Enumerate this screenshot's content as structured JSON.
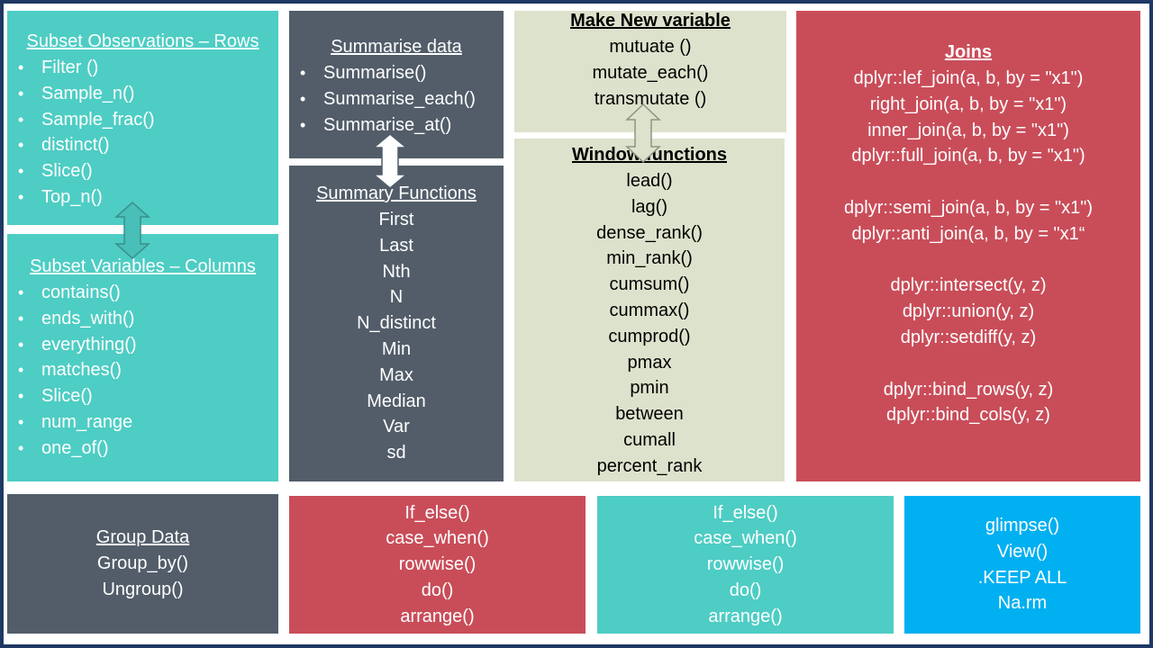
{
  "subset_rows": {
    "title": "Subset Observations – Rows",
    "items": [
      "Filter ()",
      "Sample_n()",
      "Sample_frac()",
      "distinct()",
      "Slice()",
      "Top_n()"
    ]
  },
  "subset_cols": {
    "title": "Subset Variables – Columns",
    "items": [
      "contains()",
      "ends_with()",
      "everything()",
      "matches()",
      "Slice()",
      "num_range",
      "one_of()"
    ]
  },
  "summarise": {
    "title": "Summarise data",
    "items": [
      "Summarise()",
      "Summarise_each()",
      "Summarise_at()"
    ]
  },
  "summary_functions": {
    "title": "Summary Functions",
    "items": [
      "First",
      "Last",
      "Nth",
      "N",
      "N_distinct",
      "Min",
      "Max",
      "Median",
      "Var",
      "sd"
    ]
  },
  "make_new": {
    "title": "Make New variable",
    "items": [
      "mutuate ()",
      "mutate_each()",
      "transmutate ()"
    ]
  },
  "window": {
    "title": "Window functions",
    "items": [
      "lead()",
      "lag()",
      "dense_rank()",
      "min_rank()",
      "cumsum()",
      "cummax()",
      "cumprod()",
      "pmax",
      "pmin",
      "between",
      "cumall",
      "percent_rank"
    ]
  },
  "joins": {
    "title": "Joins",
    "items": [
      "dplyr::lef_join(a, b, by = \"x1\")",
      "right_join(a, b, by = \"x1\")",
      "inner_join(a, b, by = \"x1\")",
      "dplyr::full_join(a, b, by = \"x1\")",
      "",
      "dplyr::semi_join(a, b, by = \"x1\")",
      "dplyr::anti_join(a, b, by = \"x1“",
      "",
      "dplyr::intersect(y, z)",
      "dplyr::union(y, z)",
      "dplyr::setdiff(y, z)",
      "",
      "dplyr::bind_rows(y, z)",
      "dplyr::bind_cols(y, z)"
    ]
  },
  "group": {
    "title": "Group Data",
    "items": [
      "Group_by()",
      "Ungroup()"
    ]
  },
  "conditional_red": {
    "items": [
      "If_else()",
      "case_when()",
      "rowwise()",
      "do()",
      "arrange()"
    ]
  },
  "conditional_teal": {
    "items": [
      "If_else()",
      "case_when()",
      "rowwise()",
      "do()",
      "arrange()"
    ]
  },
  "misc": {
    "items": [
      "glimpse()",
      "View()",
      ".KEEP ALL",
      "Na.rm"
    ]
  },
  "colors": {
    "teal": "#4ecdc4",
    "slate": "#525d69",
    "beige": "#dde2cc",
    "red": "#c94d59",
    "blue": "#00b0f0",
    "frame": "#1f3864"
  }
}
